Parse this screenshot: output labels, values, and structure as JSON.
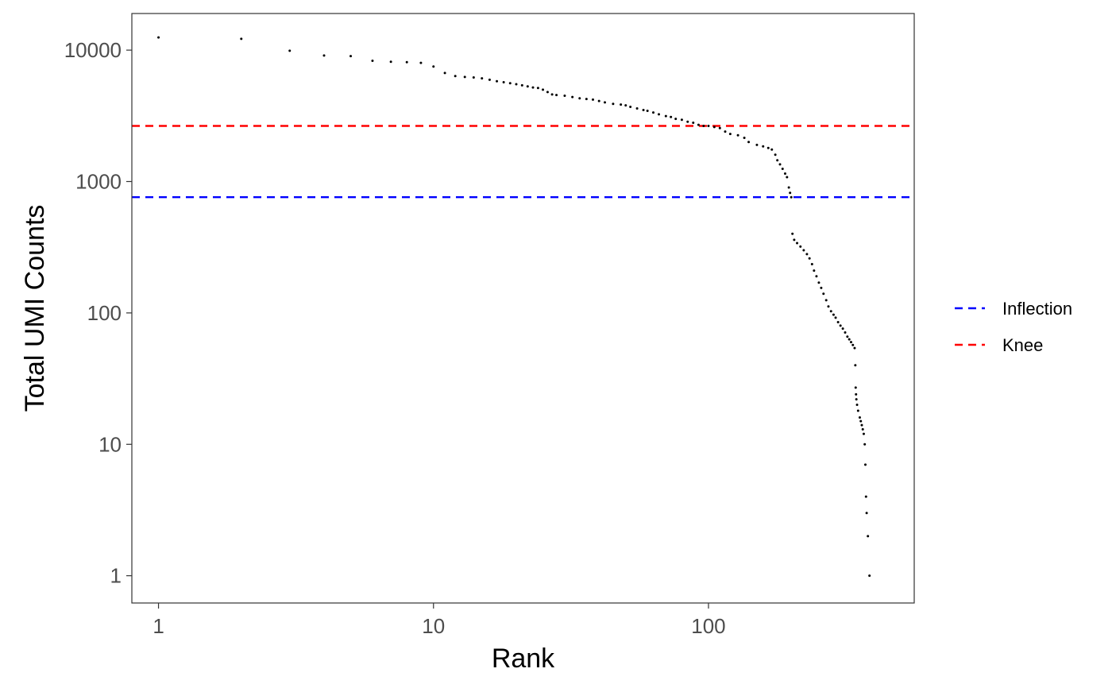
{
  "chart_data": {
    "type": "scatter",
    "title": "",
    "xlabel": "Rank",
    "ylabel": "Total UMI Counts",
    "x_scale": "log10",
    "y_scale": "log10",
    "xlim": [
      0.8,
      560
    ],
    "ylim": [
      0.62,
      19000
    ],
    "x_ticks": [
      {
        "value": 1,
        "label": "1"
      },
      {
        "value": 10,
        "label": "10"
      },
      {
        "value": 100,
        "label": "100"
      }
    ],
    "y_ticks": [
      {
        "value": 1,
        "label": "1"
      },
      {
        "value": 10,
        "label": "10"
      },
      {
        "value": 100,
        "label": "100"
      },
      {
        "value": 1000,
        "label": "1000"
      },
      {
        "value": 10000,
        "label": "10000"
      }
    ],
    "grid": false,
    "legend_position": "right",
    "reference_lines": [
      {
        "name": "Inflection",
        "y": 760,
        "color": "#0000ff",
        "style": "dashed"
      },
      {
        "name": "Knee",
        "y": 2650,
        "color": "#ff0000",
        "style": "dashed"
      }
    ],
    "point_color": "#000000",
    "series": [
      {
        "points": [
          [
            1,
            12500
          ],
          [
            2,
            12200
          ],
          [
            3,
            9900
          ],
          [
            4,
            9100
          ],
          [
            5,
            9000
          ],
          [
            6,
            8300
          ],
          [
            7,
            8150
          ],
          [
            8,
            8100
          ],
          [
            9,
            8000
          ],
          [
            10,
            7500
          ],
          [
            11,
            6700
          ],
          [
            12,
            6350
          ],
          [
            13,
            6250
          ],
          [
            14,
            6200
          ],
          [
            15,
            6100
          ],
          [
            16,
            5950
          ],
          [
            17,
            5800
          ],
          [
            18,
            5700
          ],
          [
            19,
            5600
          ],
          [
            20,
            5500
          ],
          [
            21,
            5400
          ],
          [
            22,
            5300
          ],
          [
            23,
            5200
          ],
          [
            24,
            5150
          ],
          [
            25,
            5000
          ],
          [
            26,
            4800
          ],
          [
            27,
            4600
          ],
          [
            28,
            4550
          ],
          [
            30,
            4500
          ],
          [
            32,
            4400
          ],
          [
            34,
            4300
          ],
          [
            36,
            4250
          ],
          [
            38,
            4200
          ],
          [
            40,
            4100
          ],
          [
            42,
            4000
          ],
          [
            45,
            3900
          ],
          [
            48,
            3850
          ],
          [
            50,
            3800
          ],
          [
            52,
            3700
          ],
          [
            55,
            3600
          ],
          [
            58,
            3500
          ],
          [
            60,
            3450
          ],
          [
            63,
            3350
          ],
          [
            66,
            3250
          ],
          [
            70,
            3150
          ],
          [
            73,
            3100
          ],
          [
            76,
            3000
          ],
          [
            80,
            2950
          ],
          [
            84,
            2850
          ],
          [
            88,
            2800
          ],
          [
            92,
            2700
          ],
          [
            96,
            2650
          ],
          [
            100,
            2650
          ],
          [
            105,
            2600
          ],
          [
            110,
            2550
          ],
          [
            115,
            2400
          ],
          [
            120,
            2300
          ],
          [
            128,
            2250
          ],
          [
            135,
            2150
          ],
          [
            140,
            2000
          ],
          [
            150,
            1900
          ],
          [
            158,
            1850
          ],
          [
            165,
            1800
          ],
          [
            170,
            1750
          ],
          [
            175,
            1600
          ],
          [
            178,
            1450
          ],
          [
            182,
            1350
          ],
          [
            186,
            1250
          ],
          [
            190,
            1150
          ],
          [
            193,
            1080
          ],
          [
            196,
            900
          ],
          [
            198,
            820
          ],
          [
            200,
            760
          ],
          [
            202,
            400
          ],
          [
            205,
            360
          ],
          [
            210,
            340
          ],
          [
            216,
            320
          ],
          [
            222,
            300
          ],
          [
            228,
            280
          ],
          [
            233,
            260
          ],
          [
            238,
            235
          ],
          [
            242,
            210
          ],
          [
            247,
            190
          ],
          [
            252,
            170
          ],
          [
            257,
            155
          ],
          [
            262,
            140
          ],
          [
            268,
            125
          ],
          [
            273,
            112
          ],
          [
            279,
            103
          ],
          [
            285,
            97
          ],
          [
            290,
            92
          ],
          [
            296,
            85
          ],
          [
            302,
            80
          ],
          [
            308,
            76
          ],
          [
            314,
            71
          ],
          [
            320,
            66
          ],
          [
            325,
            63
          ],
          [
            330,
            60
          ],
          [
            335,
            57
          ],
          [
            340,
            54
          ],
          [
            342,
            40
          ],
          [
            343,
            27
          ],
          [
            344,
            24
          ],
          [
            345,
            22
          ],
          [
            347,
            20
          ],
          [
            350,
            18
          ],
          [
            355,
            16
          ],
          [
            358,
            15
          ],
          [
            361,
            14
          ],
          [
            364,
            13
          ],
          [
            367,
            12
          ],
          [
            370,
            10
          ],
          [
            372,
            7
          ],
          [
            374,
            4
          ],
          [
            376,
            3
          ],
          [
            380,
            2
          ],
          [
            385,
            1
          ]
        ]
      }
    ]
  }
}
